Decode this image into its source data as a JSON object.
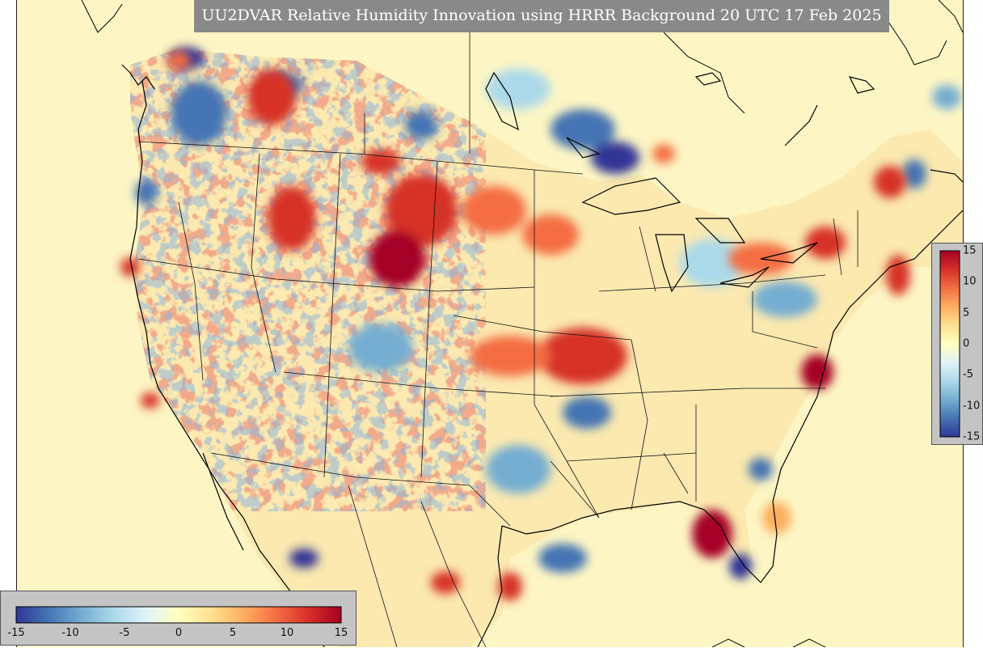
{
  "title": "UU2DVAR Relative Humidity Innovation using HRRR Background 20 UTC 17 Feb 2025",
  "colorbar": {
    "min": -15,
    "max": 15,
    "ticks": [
      "-15",
      "-10",
      "-5",
      "0",
      "5",
      "10",
      "15"
    ],
    "colors": [
      "#313695",
      "#4575b4",
      "#74add1",
      "#abd9e9",
      "#e0f3f8",
      "#ffffbf",
      "#fee090",
      "#fdae61",
      "#f46d43",
      "#d73027",
      "#a50026"
    ]
  },
  "colors": {
    "background_field": "#fdf6c4",
    "title_box": "#898989",
    "panel": "#c4c4c4",
    "border": "#222222"
  }
}
